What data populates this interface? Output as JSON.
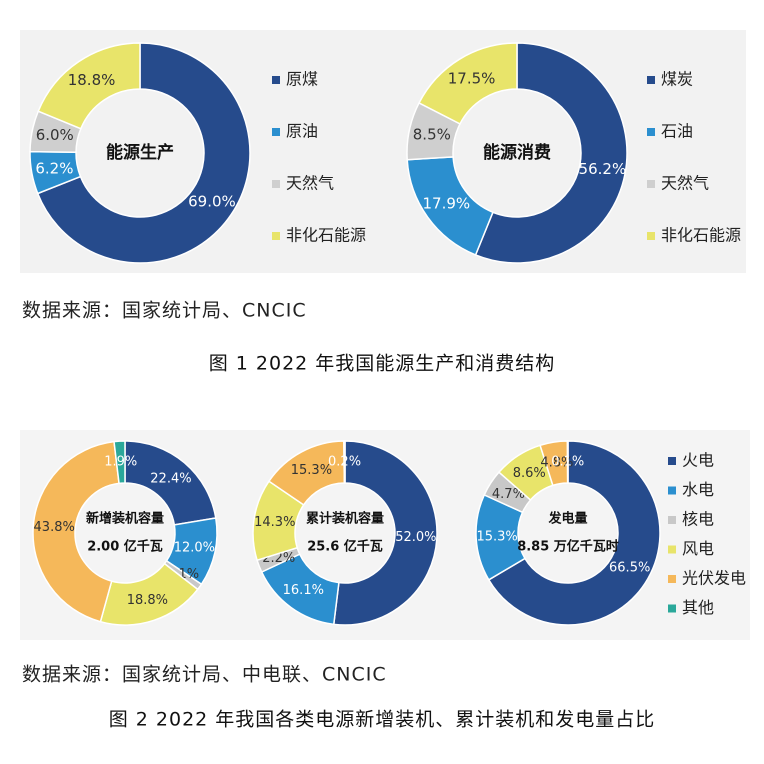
{
  "chart_data": [
    {
      "type": "pie",
      "title": "能源生产",
      "categories": [
        "原煤",
        "原油",
        "天然气",
        "非化石能源"
      ],
      "values": [
        69.0,
        6.2,
        6.0,
        18.8
      ],
      "value_labels": [
        "69.0%",
        "6.2%",
        "6.0%",
        "18.8%"
      ],
      "colors": [
        "#264b8c",
        "#2b8fcf",
        "#cfcfcf",
        "#e8e46a"
      ]
    },
    {
      "type": "pie",
      "title": "能源消费",
      "categories": [
        "煤炭",
        "石油",
        "天然气",
        "非化石能源"
      ],
      "values": [
        56.2,
        17.9,
        8.5,
        17.5
      ],
      "value_labels": [
        "56.2%",
        "17.9%",
        "8.5%",
        "17.5%"
      ],
      "colors": [
        "#264b8c",
        "#2b8fcf",
        "#cfcfcf",
        "#e8e46a"
      ]
    },
    {
      "type": "pie",
      "title": "新增装机容量",
      "subtitle": "2.00 亿千瓦",
      "categories": [
        "火电",
        "水电",
        "核电",
        "风电",
        "光伏发电",
        "其他"
      ],
      "values": [
        22.4,
        12.0,
        1.1,
        18.8,
        43.8,
        1.9
      ],
      "value_labels": [
        "22.4%",
        "12.0%",
        "1.1%",
        "18.8%",
        "43.8%",
        "1.9%"
      ],
      "colors": [
        "#264b8c",
        "#2b8fcf",
        "#c8c8c8",
        "#e8e46a",
        "#f5b85a",
        "#2aa89a"
      ]
    },
    {
      "type": "pie",
      "title": "累计装机容量",
      "subtitle": "25.6 亿千瓦",
      "categories": [
        "火电",
        "水电",
        "核电",
        "风电",
        "光伏发电",
        "其他"
      ],
      "values": [
        52.0,
        16.1,
        2.2,
        14.3,
        15.3,
        0.2
      ],
      "value_labels": [
        "52.0%",
        "16.1%",
        "2.2%",
        "14.3%",
        "15.3%",
        "0.2%"
      ],
      "colors": [
        "#264b8c",
        "#2b8fcf",
        "#c8c8c8",
        "#e8e46a",
        "#f5b85a",
        "#2aa89a"
      ]
    },
    {
      "type": "pie",
      "title": "发电量",
      "subtitle": "8.85 万亿千瓦时",
      "categories": [
        "火电",
        "水电",
        "核电",
        "风电",
        "光伏发电",
        "其他"
      ],
      "values": [
        66.5,
        15.3,
        4.7,
        8.6,
        4.8,
        0.1
      ],
      "value_labels": [
        "66.5%",
        "15.3%",
        "4.7%",
        "8.6%",
        "4.8%",
        "0.1%"
      ],
      "colors": [
        "#264b8c",
        "#2b8fcf",
        "#c8c8c8",
        "#e8e46a",
        "#f5b85a",
        "#2aa89a"
      ]
    }
  ],
  "figure1": {
    "source": "数据来源：国家统计局、CNCIC",
    "caption": "图 1  2022 年我国能源生产和消费结构"
  },
  "figure2": {
    "source": "数据来源：国家统计局、中电联、CNCIC",
    "caption": "图 2  2022 年我国各类电源新增装机、累计装机和发电量占比"
  }
}
